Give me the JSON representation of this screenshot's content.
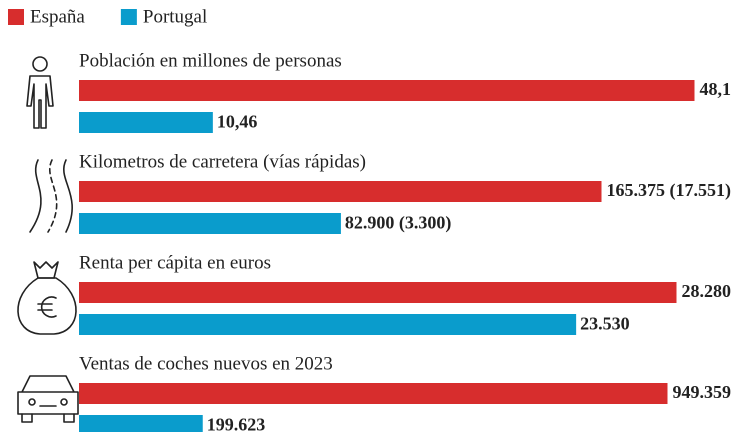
{
  "chart_data": {
    "type": "bar",
    "orientation": "horizontal",
    "categories": [
      "Población en millones de personas",
      "Kilometros de carretera (vías rápidas)",
      "Renta per cápita en euros",
      "Ventas de coches nuevos en 2023"
    ],
    "series": [
      {
        "name": "España",
        "color": "#d72d2d",
        "values": [
          48.1,
          165375,
          28280,
          949359
        ],
        "value_labels": [
          "48,1",
          "165.375 (17.551)",
          "28.280",
          "949.359"
        ]
      },
      {
        "name": "Portugal",
        "color": "#0a9ccc",
        "values": [
          10.46,
          82900,
          23530,
          199623
        ],
        "value_labels": [
          "10,46",
          "82.900 (3.300)",
          "23.530",
          "199.623"
        ]
      }
    ]
  }
}
